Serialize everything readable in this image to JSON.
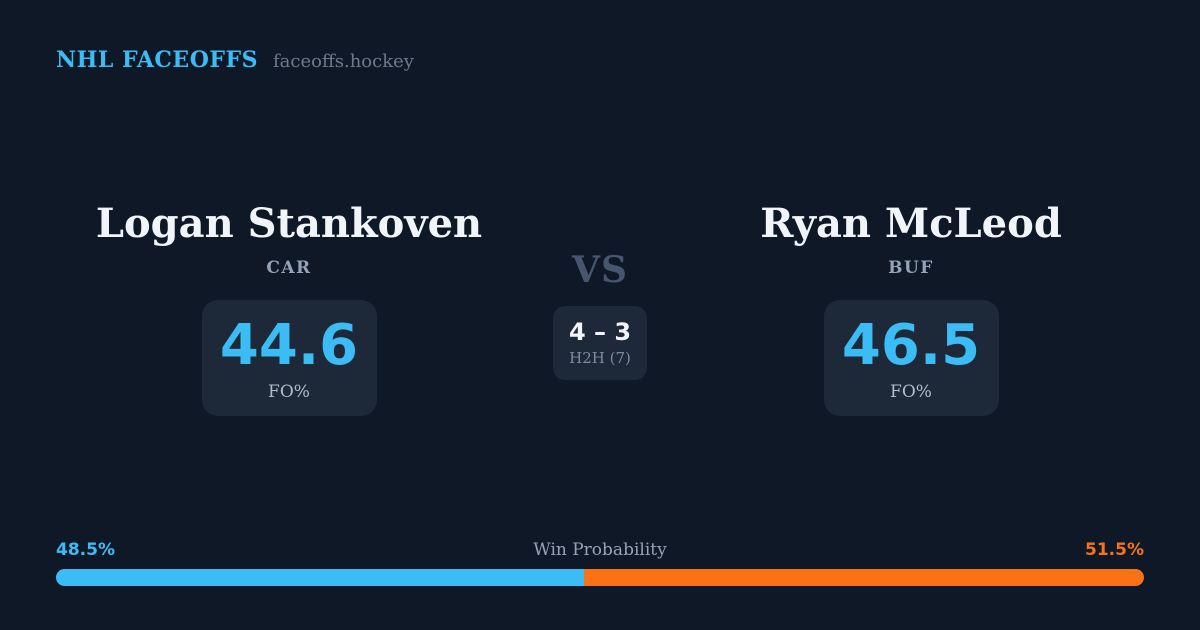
{
  "brand": {
    "title": "NHL FACEOFFS",
    "domain": "faceoffs.hockey"
  },
  "matchup": {
    "vs_label": "VS",
    "h2h": {
      "score": "4 – 3",
      "label": "H2H (7)"
    },
    "players": [
      {
        "name": "Logan Stankoven",
        "team": "CAR",
        "stat_value": "44.6",
        "stat_label": "FO%"
      },
      {
        "name": "Ryan McLeod",
        "team": "BUF",
        "stat_value": "46.5",
        "stat_label": "FO%"
      }
    ]
  },
  "win_probability": {
    "title": "Win Probability",
    "left_pct_label": "48.5%",
    "right_pct_label": "51.5%",
    "left_value": 48.5,
    "right_value": 51.5,
    "left_color": "#3cbcf4",
    "right_color": "#f97316"
  },
  "colors": {
    "background": "#0f1827",
    "card_background": "#1d2838",
    "accent_blue": "#3cbcf4",
    "accent_orange": "#f97316",
    "text_primary": "#f1f5f9",
    "text_muted": "#94a3b8"
  },
  "chart_data": {
    "type": "bar",
    "title": "Win Probability",
    "categories": [
      "Logan Stankoven (CAR)",
      "Ryan McLeod (BUF)"
    ],
    "values": [
      48.5,
      51.5
    ],
    "colors": [
      "#3cbcf4",
      "#f97316"
    ],
    "xlabel": "",
    "ylabel": "",
    "layout": "single stacked horizontal bar, labels above ends",
    "related_stats": {
      "faceoff_pct": {
        "Logan Stankoven": 44.6,
        "Ryan McLeod": 46.5
      },
      "head_to_head": {
        "score": "4 – 3",
        "games": 7
      }
    }
  }
}
